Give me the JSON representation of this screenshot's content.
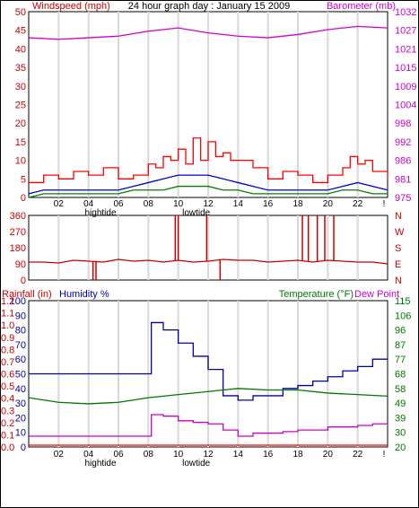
{
  "header": {
    "title": "24 hour graph day : January 15 2009",
    "left_label": "Windspeed (mph)",
    "right_label": "Barometer (mb)"
  },
  "colors": {
    "wind": "#ff0000",
    "gust": "#ff0000",
    "average": "#0000cc",
    "low": "#008000",
    "barometer": "#cc00cc",
    "direction": "#cc0000",
    "humidity": "#0000aa",
    "temperature": "#007700",
    "dewpoint": "#cc00cc",
    "rain": "#ff0000",
    "axis_left": "#cc0000",
    "axis_right": "#cc00cc",
    "axis_right_temp": "#007700",
    "grid": "#d8d8d8",
    "frame": "#000000"
  },
  "x_axis": {
    "ticks": [
      "02",
      "04",
      "06",
      "08",
      "10",
      "12",
      "14",
      "16",
      "18",
      "20",
      "22",
      "!"
    ],
    "annotations": [
      {
        "label": "hightide",
        "x": 4.8
      },
      {
        "label": "lowtide",
        "x": 11.2
      }
    ]
  },
  "wind_panel": {
    "left_ticks": [
      "0",
      "5",
      "10",
      "15",
      "20",
      "25",
      "30",
      "35",
      "40",
      "45",
      "50"
    ],
    "right_ticks": [
      "975",
      "981",
      "986",
      "992",
      "998",
      "1004",
      "1009",
      "1015",
      "1021",
      "1027",
      "1032"
    ]
  },
  "direction_panel": {
    "left_ticks": [
      "0",
      "90",
      "180",
      "270",
      "360"
    ],
    "right_ticks": [
      "N",
      "E",
      "S",
      "W",
      "N"
    ]
  },
  "climate_panel": {
    "rainfall_label": "Rainfall (in)",
    "humidity_label": "Humidity %",
    "temperature_label": "Temperature (°F)",
    "dewpoint_label": "Dew Point",
    "rain_ticks": [
      "0.0",
      "0.1",
      "0.2",
      "0.3",
      "0.4",
      "0.5",
      "0.6",
      "0.7",
      "0.8",
      "0.9",
      "1.0",
      "1.1",
      "1.2"
    ],
    "humidity_ticks": [
      "0",
      "10",
      "20",
      "30",
      "40",
      "50",
      "60",
      "70",
      "80",
      "90",
      "100"
    ],
    "temp_ticks": [
      "20",
      "30",
      "39",
      "49",
      "58",
      "68",
      "77",
      "87",
      "96",
      "106",
      "115"
    ]
  },
  "chart_data": [
    {
      "type": "line",
      "name": "wind-panel",
      "xlim": [
        0,
        24
      ],
      "ylim": [
        0,
        50
      ],
      "y2lim": [
        975,
        1032
      ],
      "series": [
        {
          "name": "gust",
          "axis": "left",
          "x": [
            0,
            1,
            2,
            3,
            4,
            5,
            6,
            7,
            8,
            8.5,
            9,
            9.5,
            10,
            10.5,
            11,
            11.5,
            12,
            12.5,
            13,
            13.5,
            14,
            15,
            16,
            17,
            18,
            19,
            20,
            21,
            21.5,
            22,
            22.5,
            23,
            24
          ],
          "values": [
            4,
            6,
            5,
            7,
            6,
            8,
            5,
            6,
            9,
            8,
            11,
            10,
            13,
            9,
            16,
            10,
            15,
            11,
            12,
            10,
            10,
            8,
            5,
            7,
            6,
            4,
            6,
            8,
            11,
            9,
            10,
            7,
            5
          ]
        },
        {
          "name": "average",
          "axis": "left",
          "x": [
            0,
            1,
            2,
            3,
            4,
            5,
            6,
            7,
            8,
            9,
            10,
            11,
            12,
            13,
            14,
            15,
            16,
            17,
            18,
            19,
            20,
            21,
            22,
            23,
            24
          ],
          "values": [
            1,
            2,
            2,
            2,
            2,
            2,
            2,
            3,
            4,
            5,
            6,
            6,
            6,
            5,
            4,
            3,
            2,
            2,
            2,
            2,
            2,
            3,
            4,
            3,
            2
          ]
        },
        {
          "name": "low",
          "axis": "left",
          "x": [
            0,
            1,
            2,
            3,
            4,
            5,
            6,
            7,
            8,
            9,
            10,
            11,
            12,
            13,
            14,
            15,
            16,
            17,
            18,
            19,
            20,
            21,
            22,
            23,
            24
          ],
          "values": [
            0,
            1,
            1,
            1,
            1,
            1,
            1,
            2,
            2,
            2,
            3,
            3,
            3,
            2,
            2,
            1,
            1,
            1,
            1,
            1,
            1,
            2,
            2,
            1,
            1
          ]
        },
        {
          "name": "barometer",
          "axis": "right",
          "x": [
            0,
            2,
            4,
            6,
            8,
            10,
            12,
            14,
            16,
            18,
            20,
            22,
            24
          ],
          "values": [
            1024,
            1023.5,
            1024,
            1024.5,
            1026,
            1027,
            1025.5,
            1024.5,
            1024,
            1025,
            1026.5,
            1027.5,
            1027
          ]
        }
      ]
    },
    {
      "type": "line",
      "name": "direction-panel",
      "xlim": [
        0,
        24
      ],
      "ylim": [
        0,
        360
      ],
      "series": [
        {
          "name": "direction",
          "x": [
            0,
            1,
            2,
            3,
            4,
            5,
            6,
            7,
            8,
            9,
            10,
            11,
            12,
            13,
            14,
            15,
            16,
            17,
            18,
            19,
            20,
            21,
            22,
            23,
            24
          ],
          "values": [
            100,
            100,
            95,
            110,
            105,
            100,
            115,
            105,
            110,
            100,
            110,
            100,
            105,
            115,
            110,
            110,
            100,
            105,
            110,
            100,
            110,
            105,
            100,
            100,
            90
          ],
          "spikes": [
            {
              "x": 4.3,
              "to": 0
            },
            {
              "x": 4.5,
              "to": 0
            },
            {
              "x": 9.8,
              "to": 360
            },
            {
              "x": 10,
              "to": 360
            },
            {
              "x": 11.9,
              "to": 360
            },
            {
              "x": 12.8,
              "to": 0
            },
            {
              "x": 18.3,
              "to": 360
            },
            {
              "x": 18.7,
              "to": 360
            },
            {
              "x": 19.3,
              "to": 360
            },
            {
              "x": 19.8,
              "to": 360
            },
            {
              "x": 20.4,
              "to": 360
            }
          ]
        }
      ]
    },
    {
      "type": "line",
      "name": "climate-panel",
      "xlim": [
        0,
        24
      ],
      "ylim_humidity": [
        0,
        100
      ],
      "ylim_temp": [
        20,
        115
      ],
      "ylim_rain": [
        0,
        1.2
      ],
      "series": [
        {
          "name": "humidity",
          "axis": "humidity",
          "step": true,
          "x": [
            0,
            8,
            8.2,
            9,
            10,
            11,
            12,
            13,
            14,
            15,
            17,
            18,
            19,
            20,
            21,
            22,
            23,
            24
          ],
          "values": [
            50,
            50,
            85,
            80,
            71,
            62,
            53,
            35,
            32,
            35,
            40,
            42,
            45,
            48,
            52,
            55,
            60,
            60
          ]
        },
        {
          "name": "temperature",
          "axis": "temp",
          "x": [
            0,
            2,
            4,
            6,
            8,
            10,
            12,
            14,
            16,
            18,
            20,
            22,
            24
          ],
          "values": [
            52,
            49,
            48,
            49,
            52,
            54,
            56,
            58,
            57,
            57,
            55,
            54,
            53
          ]
        },
        {
          "name": "dewpoint",
          "axis": "temp",
          "step": true,
          "x": [
            0,
            8,
            8.2,
            9,
            10,
            11,
            12,
            13,
            14,
            15,
            16,
            17,
            18,
            19,
            20,
            21,
            22,
            23,
            24
          ],
          "values": [
            27,
            27,
            41,
            40,
            37,
            36,
            35,
            31,
            27,
            29,
            29,
            30,
            31,
            31,
            33,
            33,
            34,
            35,
            34
          ]
        },
        {
          "name": "rain",
          "axis": "rain",
          "x": [
            0,
            24
          ],
          "values": [
            0.0,
            0.0
          ]
        }
      ]
    }
  ]
}
